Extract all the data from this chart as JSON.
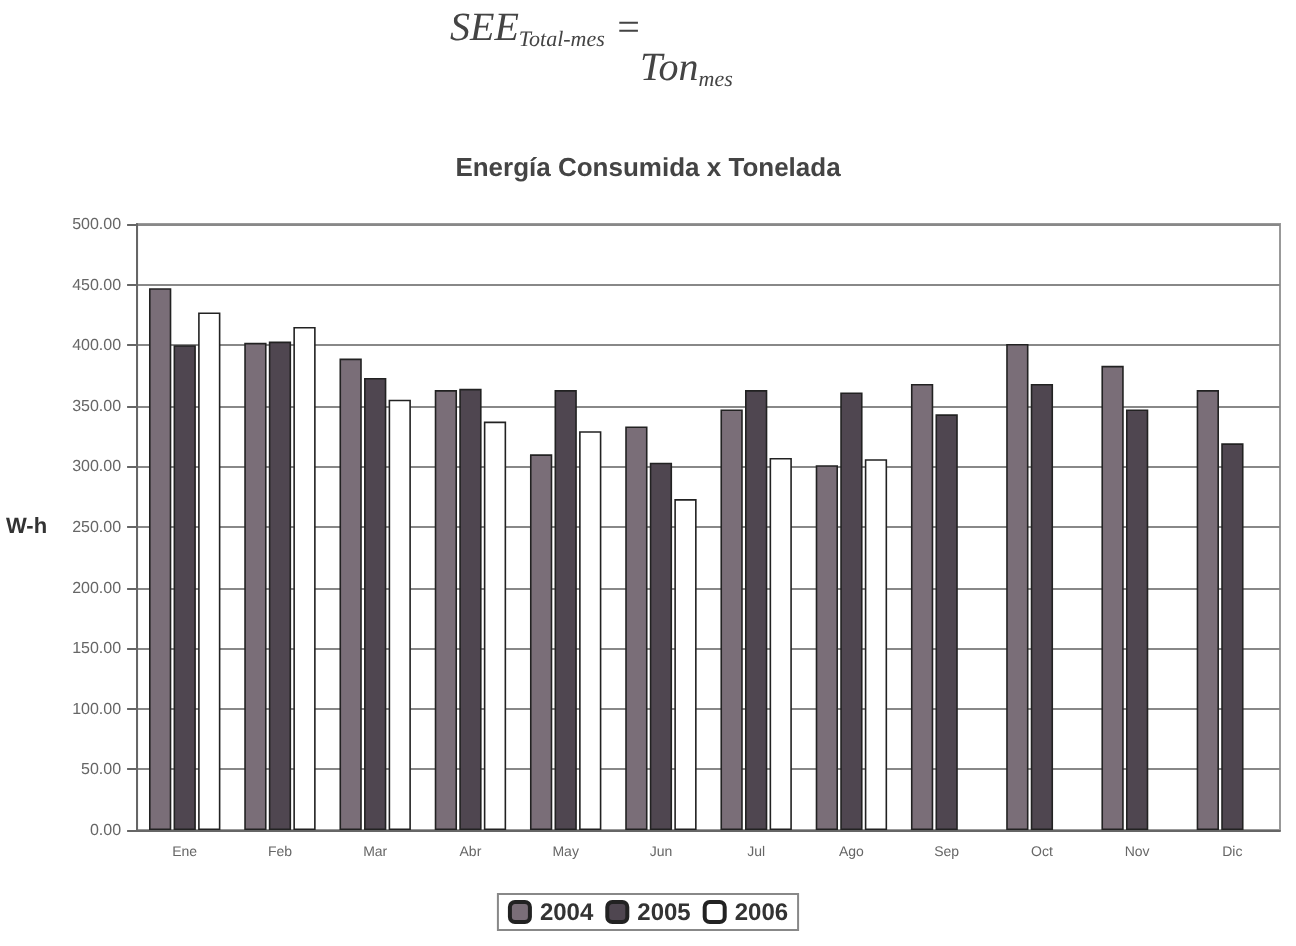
{
  "chart_data": {
    "type": "bar",
    "title": "Energía Consumida x Tonelada",
    "ylabel": "W-h",
    "annotations": [
      "SEE$_{Total-mes}$ =",
      "Ton$_{mes}$"
    ],
    "categories": [
      "Ene",
      "Feb",
      "Mar",
      "Abr",
      "May",
      "Jun",
      "Jul",
      "Ago",
      "Sep",
      "Oct",
      "Nov",
      "Dic"
    ],
    "series": [
      {
        "name": "2004",
        "color": "#7a6e78",
        "values": [
          447,
          402,
          389,
          363,
          310,
          333,
          347,
          301,
          368,
          401,
          383,
          363
        ]
      },
      {
        "name": "2005",
        "color": "#4f4650",
        "values": [
          400,
          403,
          373,
          364,
          363,
          303,
          363,
          361,
          343,
          368,
          347,
          319
        ]
      },
      {
        "name": "2006",
        "color": "#ffffff",
        "values": [
          427,
          415,
          355,
          337,
          329,
          273,
          307,
          306,
          null,
          null,
          null,
          null
        ]
      }
    ],
    "ylim": [
      0,
      500
    ],
    "yticks": [
      {
        "value": 0,
        "label": "0.00"
      },
      {
        "value": 50,
        "label": "50.00"
      },
      {
        "value": 100,
        "label": "100.00"
      },
      {
        "value": 150,
        "label": "150.00"
      },
      {
        "value": 200,
        "label": "200.00"
      },
      {
        "value": 250,
        "label": "250.00"
      },
      {
        "value": 300,
        "label": "300.00"
      },
      {
        "value": 350,
        "label": "350.00"
      },
      {
        "value": 400,
        "label": "400.00"
      },
      {
        "value": 450,
        "label": "450.00"
      },
      {
        "value": 500,
        "label": "500.00"
      }
    ],
    "grid": "y",
    "legend": "bottom"
  }
}
